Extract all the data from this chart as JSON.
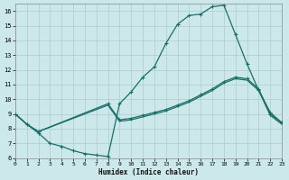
{
  "xlabel": "Humidex (Indice chaleur)",
  "bg_color": "#cde8ea",
  "grid_color": "#aaccce",
  "line_color": "#1a6e68",
  "xlim": [
    0,
    23
  ],
  "ylim": [
    6,
    16.5
  ],
  "yticks": [
    6,
    7,
    8,
    9,
    10,
    11,
    12,
    13,
    14,
    15,
    16
  ],
  "xticks": [
    0,
    1,
    2,
    3,
    4,
    5,
    6,
    7,
    8,
    9,
    10,
    11,
    12,
    13,
    14,
    15,
    16,
    17,
    18,
    19,
    20,
    21,
    22,
    23
  ],
  "curve1_x": [
    0,
    1,
    2,
    3,
    4,
    5,
    6,
    7,
    8,
    9,
    10,
    11,
    12,
    13,
    14,
    15,
    16,
    17,
    18,
    19,
    20,
    21,
    22,
    23
  ],
  "curve1_y": [
    9.0,
    8.3,
    7.7,
    7.0,
    6.8,
    6.5,
    6.3,
    6.2,
    6.1,
    9.7,
    10.5,
    11.5,
    12.2,
    13.8,
    15.1,
    15.7,
    15.8,
    16.3,
    16.4,
    14.4,
    12.4,
    10.6,
    9.1,
    8.4
  ],
  "curve2_x": [
    0,
    1,
    2,
    8,
    9,
    10,
    11,
    12,
    13,
    14,
    15,
    16,
    17,
    18,
    19,
    20,
    21,
    22,
    23
  ],
  "curve2_y": [
    9.0,
    8.3,
    7.8,
    9.7,
    8.6,
    8.7,
    8.9,
    9.1,
    9.3,
    9.6,
    9.9,
    10.3,
    10.7,
    11.2,
    11.5,
    11.4,
    10.7,
    9.0,
    8.4
  ],
  "curve3_x": [
    0,
    1,
    2,
    8,
    9,
    10,
    11,
    12,
    13,
    14,
    15,
    16,
    17,
    18,
    19,
    20,
    21,
    22,
    23
  ],
  "curve3_y": [
    9.0,
    8.3,
    7.8,
    9.6,
    8.5,
    8.6,
    8.8,
    9.0,
    9.2,
    9.5,
    9.8,
    10.2,
    10.6,
    11.1,
    11.4,
    11.3,
    10.6,
    8.9,
    8.3
  ],
  "marker1": true,
  "marker2": true,
  "marker3": false
}
